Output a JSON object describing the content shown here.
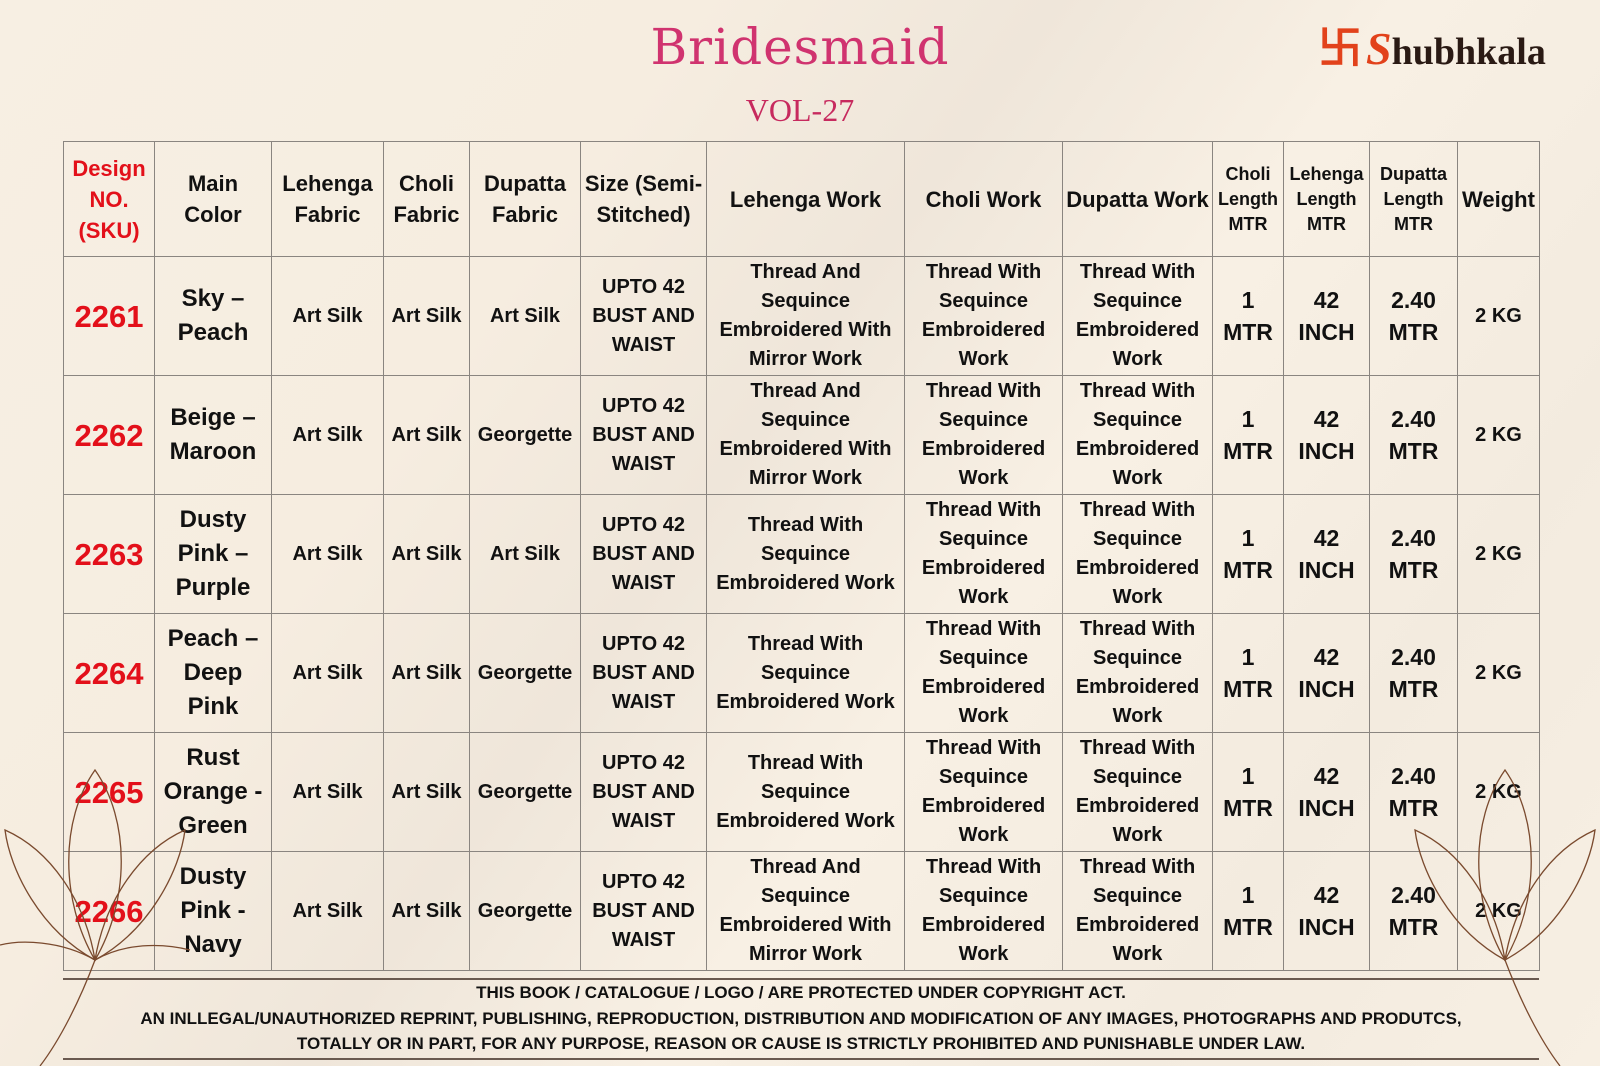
{
  "header": {
    "title": "Bridesmaid",
    "volume": "VOL-27",
    "brand": "Shubhkala",
    "brand_text": "bhkala",
    "brand_color": "#e2421b",
    "title_color": "#d0336f"
  },
  "table": {
    "columns": [
      "Design NO. (SKU)",
      "Main Color",
      "Lehenga Fabric",
      "Choli Fabric",
      "Dupatta Fabric",
      "Size (Semi-Stitched)",
      "Lehenga Work",
      "Choli Work",
      "Dupatta Work",
      "Choli Length MTR",
      "Lehenga Length MTR",
      "Dupatta Length MTR",
      "Weight"
    ],
    "rows": [
      {
        "sku": "2261",
        "color": "Sky – Peach",
        "lehenga_fabric": "Art Silk",
        "choli_fabric": "Art Silk",
        "dupatta_fabric": "Art Silk",
        "size": "UPTO 42 BUST AND WAIST",
        "lehenga_work": "Thread And Sequince Embroidered With Mirror Work",
        "choli_work": "Thread With Sequince Embroidered Work",
        "dupatta_work": "Thread With Sequince Embroidered Work",
        "choli_length": "1 MTR",
        "lehenga_length": "42 INCH",
        "dupatta_length": "2.40 MTR",
        "weight": "2 KG"
      },
      {
        "sku": "2262",
        "color": "Beige – Maroon",
        "lehenga_fabric": "Art Silk",
        "choli_fabric": "Art Silk",
        "dupatta_fabric": "Georgette",
        "size": "UPTO 42 BUST AND WAIST",
        "lehenga_work": "Thread And Sequince Embroidered With Mirror Work",
        "choli_work": "Thread With Sequince Embroidered Work",
        "dupatta_work": "Thread With Sequince Embroidered Work",
        "choli_length": "1 MTR",
        "lehenga_length": "42 INCH",
        "dupatta_length": "2.40 MTR",
        "weight": "2 KG"
      },
      {
        "sku": "2263",
        "color": "Dusty Pink – Purple",
        "lehenga_fabric": "Art Silk",
        "choli_fabric": "Art Silk",
        "dupatta_fabric": "Art Silk",
        "size": "UPTO 42 BUST AND WAIST",
        "lehenga_work": "Thread With Sequince Embroidered Work",
        "choli_work": "Thread With Sequince Embroidered Work",
        "dupatta_work": "Thread With Sequince Embroidered Work",
        "choli_length": "1 MTR",
        "lehenga_length": "42 INCH",
        "dupatta_length": "2.40 MTR",
        "weight": "2 KG"
      },
      {
        "sku": "2264",
        "color": "Peach – Deep Pink",
        "lehenga_fabric": "Art Silk",
        "choli_fabric": "Art Silk",
        "dupatta_fabric": "Georgette",
        "size": "UPTO 42 BUST AND WAIST",
        "lehenga_work": "Thread With Sequince Embroidered Work",
        "choli_work": "Thread With Sequince Embroidered Work",
        "dupatta_work": "Thread With Sequince Embroidered Work",
        "choli_length": "1 MTR",
        "lehenga_length": "42 INCH",
        "dupatta_length": "2.40 MTR",
        "weight": "2 KG"
      },
      {
        "sku": "2265",
        "color": "Rust Orange - Green",
        "lehenga_fabric": "Art Silk",
        "choli_fabric": "Art Silk",
        "dupatta_fabric": "Georgette",
        "size": "UPTO 42 BUST AND WAIST",
        "lehenga_work": "Thread With Sequince Embroidered Work",
        "choli_work": "Thread With Sequince Embroidered Work",
        "dupatta_work": "Thread With Sequince Embroidered Work",
        "choli_length": "1 MTR",
        "lehenga_length": "42 INCH",
        "dupatta_length": "2.40 MTR",
        "weight": "2 KG"
      },
      {
        "sku": "2266",
        "color": "Dusty Pink - Navy",
        "lehenga_fabric": "Art Silk",
        "choli_fabric": "Art Silk",
        "dupatta_fabric": "Georgette",
        "size": "UPTO 42 BUST AND WAIST",
        "lehenga_work": "Thread And Sequince Embroidered With Mirror Work",
        "choli_work": "Thread With Sequince Embroidered Work",
        "dupatta_work": "Thread With Sequince Embroidered Work",
        "choli_length": "1 MTR",
        "lehenga_length": "42 INCH",
        "dupatta_length": "2.40 MTR",
        "weight": "2 KG"
      }
    ]
  },
  "footer": {
    "lines": [
      "THIS BOOK / CATALOGUE / LOGO / ARE PROTECTED UNDER COPYRIGHT ACT.",
      "AN INLLEGAL/UNAUTHORIZED REPRINT, PUBLISHING, REPRODUCTION, DISTRIBUTION AND MODIFICATION OF ANY IMAGES, PHOTOGRAPHS AND PRODUTCS,",
      "TOTALLY OR IN PART, FOR ANY PURPOSE, REASON OR CAUSE IS STRICTLY PROHIBITED AND PUNISHABLE UNDER LAW."
    ]
  }
}
